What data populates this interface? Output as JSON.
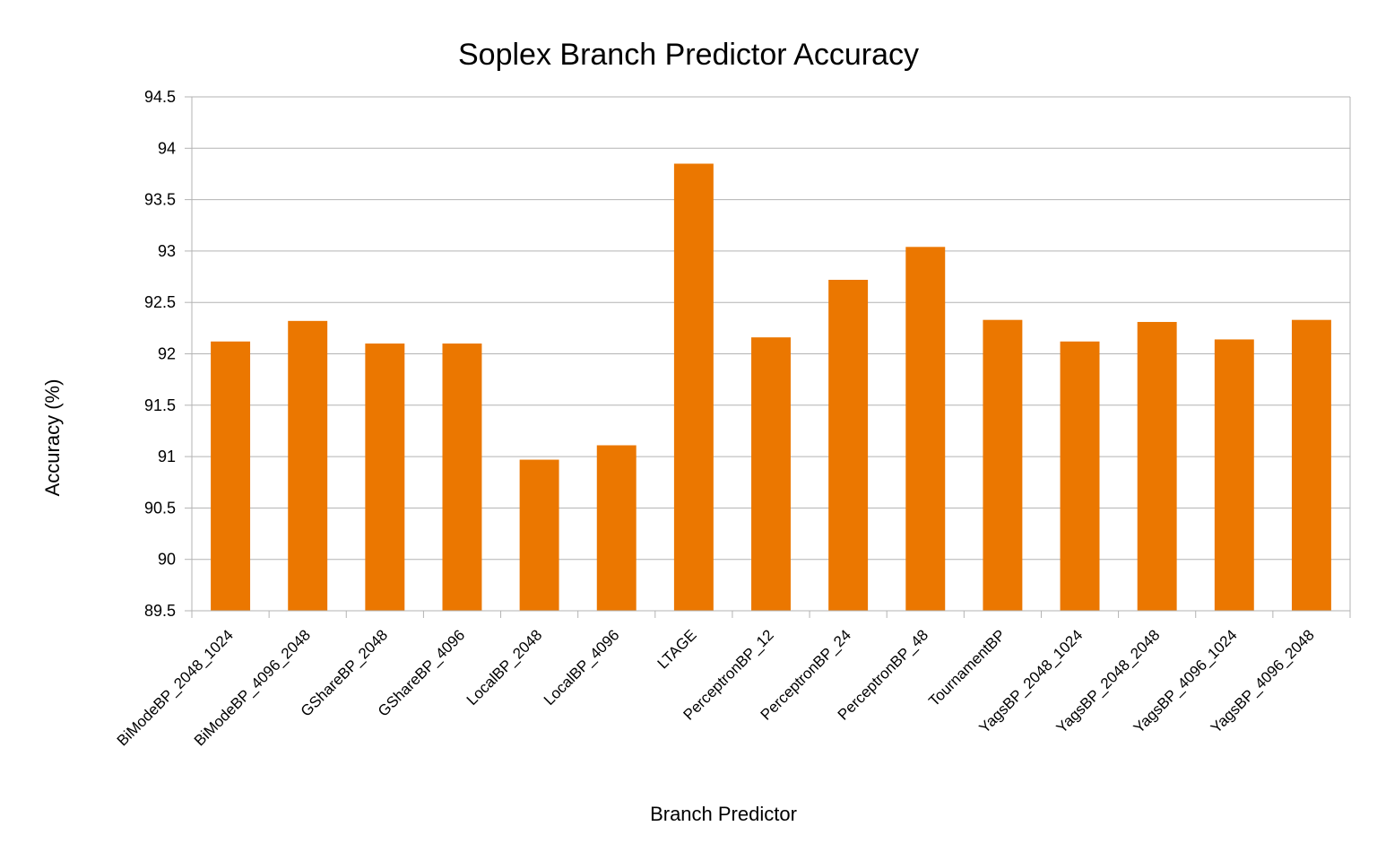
{
  "chart_data": {
    "type": "bar",
    "title": "Soplex Branch Predictor Accuracy",
    "xlabel": "Branch Predictor",
    "ylabel": "Accuracy (%)",
    "ylim": [
      89.5,
      94.5
    ],
    "ytick_step": 0.5,
    "yticks": [
      "94.5",
      "94",
      "93.5",
      "93",
      "92.5",
      "92",
      "91.5",
      "91",
      "90.5",
      "90",
      "89.5"
    ],
    "grid": true,
    "legend": "none",
    "categories": [
      "BiModeBP_2048_1024",
      "BiModeBP_4096_2048",
      "GShareBP_2048",
      "GShareBP_4096",
      "LocalBP_2048",
      "LocalBP_4096",
      "LTAGE",
      "PerceptronBP_12",
      "PerceptronBP_24",
      "PerceptronBP_48",
      "TournamentBP",
      "YagsBP_2048_1024",
      "YagsBP_2048_2048",
      "YagsBP_4096_1024",
      "YagsBP_4096_2048"
    ],
    "values": [
      92.12,
      92.32,
      92.1,
      92.1,
      90.97,
      91.11,
      93.85,
      92.16,
      92.72,
      93.04,
      92.33,
      92.12,
      92.31,
      92.14,
      92.33
    ],
    "bar_color": "#EB7700",
    "grid_color": "#B3B3B3"
  }
}
